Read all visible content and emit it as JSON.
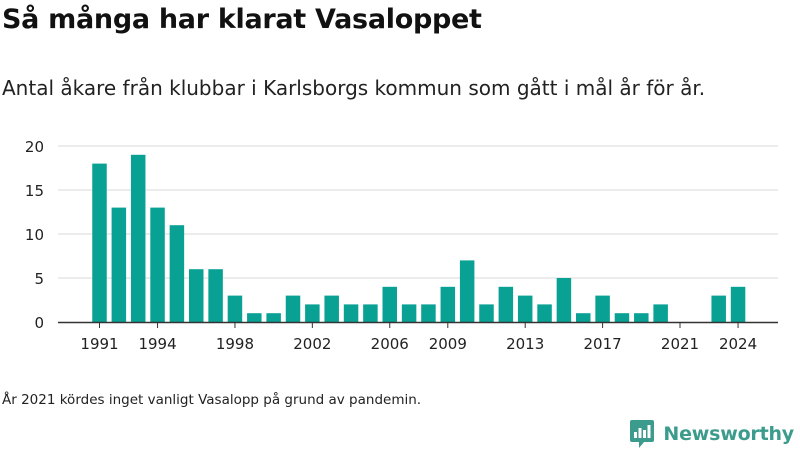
{
  "title": "Så många har klarat Vasaloppet",
  "subtitle": "Antal åkare från klubbar i Karlsborgs kommun som gått i mål år för år.",
  "footnote": "År 2021 kördes inget vanligt Vasalopp på grund av pandemin.",
  "brand": "Newsworthy",
  "colors": {
    "bar": "#0aa195",
    "grid": "#d9d9d9",
    "axis": "#333333",
    "brand": "#3b9b8c"
  },
  "chart_data": {
    "type": "bar",
    "categories": [
      "1991",
      "1992",
      "1993",
      "1994",
      "1995",
      "1996",
      "1997",
      "1998",
      "1999",
      "2000",
      "2001",
      "2002",
      "2003",
      "2004",
      "2005",
      "2006",
      "2007",
      "2008",
      "2009",
      "2010",
      "2011",
      "2012",
      "2013",
      "2014",
      "2015",
      "2016",
      "2017",
      "2018",
      "2019",
      "2020",
      "2021",
      "2022",
      "2023",
      "2024"
    ],
    "values": [
      18,
      13,
      19,
      13,
      11,
      6,
      6,
      3,
      1,
      1,
      3,
      2,
      3,
      2,
      2,
      4,
      2,
      2,
      4,
      7,
      2,
      4,
      3,
      2,
      5,
      1,
      3,
      1,
      1,
      2,
      0,
      0,
      3,
      4
    ],
    "x_tick_labels": [
      "1991",
      "1994",
      "1998",
      "2002",
      "2006",
      "2009",
      "2013",
      "2017",
      "2021",
      "2024"
    ],
    "y_ticks": [
      0,
      5,
      10,
      15,
      20
    ],
    "ylim": [
      0,
      20
    ],
    "grid": true,
    "legend": "none"
  }
}
